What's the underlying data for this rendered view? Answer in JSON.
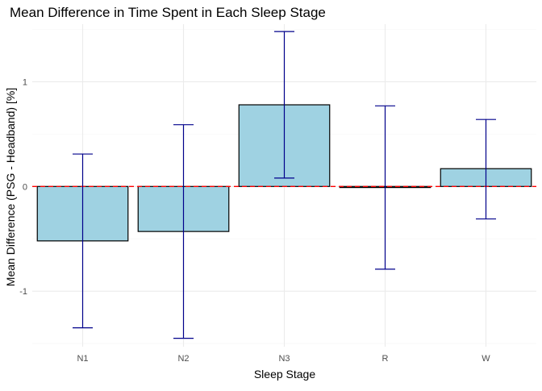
{
  "chart_data": {
    "type": "bar",
    "title": "Mean Difference in Time Spent in Each Sleep Stage",
    "xlabel": "Sleep Stage",
    "ylabel": "Mean Difference (PSG - Headband) [%]",
    "categories": [
      "N1",
      "N2",
      "N3",
      "R",
      "W"
    ],
    "values": [
      -0.52,
      -0.43,
      0.78,
      -0.01,
      0.17
    ],
    "error_low": [
      -1.35,
      -1.45,
      0.08,
      -0.79,
      -0.31
    ],
    "error_high": [
      0.31,
      0.59,
      1.48,
      0.77,
      0.64
    ],
    "ylim": [
      -1.53,
      1.55
    ],
    "yticks": [
      -1,
      0,
      1
    ],
    "ytick_labels": [
      "-1",
      "0",
      "1"
    ],
    "reference_line": 0,
    "grid": true,
    "legend": "none",
    "colors": {
      "bar_fill": "#9fd2e2",
      "bar_stroke": "#000000",
      "error_bar": "#00008b",
      "reference_line": "#ff0000",
      "grid_major": "#ebebeb",
      "grid_minor": "#f5f5f5"
    }
  }
}
